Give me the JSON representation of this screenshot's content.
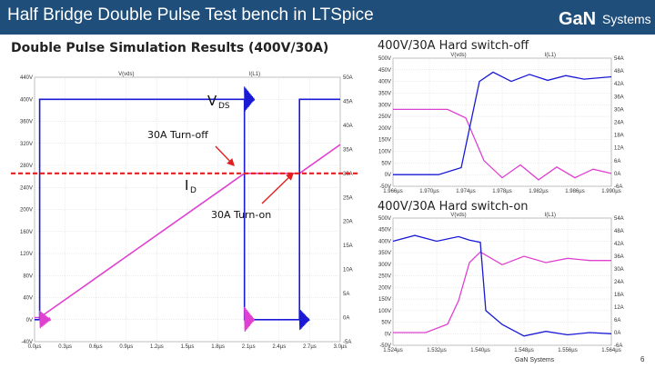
{
  "header": {
    "title": "Half Bridge Double Pulse Test bench in LTSpice",
    "logo_text": "GaN",
    "logo_sub": "Systems"
  },
  "left_title": "Double Pulse Simulation Results (400V/30A)",
  "footer": {
    "company": "GaN Systems",
    "page": "6"
  },
  "colors": {
    "vds": "#1a1ad6",
    "id": "#e040d0",
    "title_bg": "#1f4e7a",
    "dashed": "#e02020"
  },
  "chart_data": [
    {
      "type": "line",
      "title": "Double Pulse Simulation Results (400V/30A)",
      "series_labels": [
        "V(vds)",
        "I(L1)"
      ],
      "x_ticks": [
        "0.0µs",
        "0.3µs",
        "0.6µs",
        "0.9µs",
        "1.2µs",
        "1.5µs",
        "1.8µs",
        "2.1µs",
        "2.4µs",
        "2.7µs",
        "3.0µs"
      ],
      "xlim": [
        0,
        3.0
      ],
      "y_left_ticks": [
        "-40V",
        "0V",
        "40V",
        "80V",
        "120V",
        "160V",
        "200V",
        "240V",
        "280V",
        "320V",
        "360V",
        "400V",
        "440V"
      ],
      "ylim_left": [
        -40,
        440
      ],
      "y_right_ticks": [
        "-5A",
        "0A",
        "5A",
        "10A",
        "15A",
        "20A",
        "25A",
        "30A",
        "35A",
        "40A",
        "45A",
        "50A"
      ],
      "ylim_right": [
        -5,
        50
      ],
      "series": [
        {
          "name": "V(vds)",
          "x": [
            0.0,
            0.05,
            0.05,
            2.06,
            2.06,
            2.1,
            2.4,
            2.6,
            2.6,
            3.0
          ],
          "y": [
            0,
            0,
            400,
            400,
            0,
            0,
            0,
            0,
            400,
            400
          ]
        },
        {
          "name": "I(L1)",
          "x": [
            0.0,
            0.05,
            2.06,
            2.6,
            3.0
          ],
          "y": [
            0,
            0,
            30,
            30,
            36
          ]
        }
      ],
      "annotations": {
        "vds_label": "V",
        "vds_sub": "DS",
        "id_label": "I",
        "id_sub": "D",
        "turn_off": "30A Turn-off",
        "turn_on": "30A Turn-on"
      }
    },
    {
      "type": "line",
      "title": "400V/30A Hard switch-off",
      "series_labels": [
        "V(vds)",
        "I(L1)"
      ],
      "x_ticks": [
        "1.966µs",
        "1.970µs",
        "1.974µs",
        "1.978µs",
        "1.982µs",
        "1.986µs",
        "1.990µs"
      ],
      "xlim": [
        1.966,
        1.99
      ],
      "y_left_ticks": [
        "-50V",
        "0V",
        "50V",
        "100V",
        "150V",
        "200V",
        "250V",
        "300V",
        "350V",
        "400V",
        "450V",
        "500V"
      ],
      "ylim_left": [
        -50,
        500
      ],
      "y_right_ticks": [
        "-6A",
        "0A",
        "6A",
        "12A",
        "18A",
        "24A",
        "30A",
        "36A",
        "42A",
        "48A",
        "54A"
      ],
      "ylim_right": [
        -6,
        54
      ],
      "series": [
        {
          "name": "V(vds)",
          "x": [
            1.966,
            1.971,
            1.9735,
            1.9755,
            1.977,
            1.979,
            1.981,
            1.983,
            1.985,
            1.987,
            1.99
          ],
          "y": [
            0,
            0,
            30,
            400,
            440,
            400,
            430,
            405,
            425,
            410,
            420
          ]
        },
        {
          "name": "I(L1)",
          "x": [
            1.966,
            1.972,
            1.974,
            1.976,
            1.978,
            1.98,
            1.982,
            1.984,
            1.986,
            1.988,
            1.99
          ],
          "y": [
            30,
            30,
            26,
            6,
            -2,
            4,
            -3,
            3,
            -2,
            2,
            0
          ]
        }
      ]
    },
    {
      "type": "line",
      "title": "400V/30A Hard switch-on",
      "series_labels": [
        "V(vds)",
        "I(L1)"
      ],
      "x_ticks": [
        "1.524µs",
        "1.532µs",
        "1.540µs",
        "1.548µs",
        "1.556µs",
        "1.564µs"
      ],
      "xlim": [
        1.524,
        1.564
      ],
      "y_left_ticks": [
        "-50V",
        "0V",
        "50V",
        "100V",
        "150V",
        "200V",
        "250V",
        "300V",
        "350V",
        "400V",
        "450V",
        "500V"
      ],
      "ylim_left": [
        -50,
        500
      ],
      "y_right_ticks": [
        "-6A",
        "0A",
        "6A",
        "12A",
        "18A",
        "24A",
        "30A",
        "36A",
        "42A",
        "48A",
        "54A"
      ],
      "ylim_right": [
        -6,
        54
      ],
      "series": [
        {
          "name": "V(vds)",
          "x": [
            1.524,
            1.528,
            1.532,
            1.536,
            1.538,
            1.54,
            1.541,
            1.544,
            1.548,
            1.552,
            1.556,
            1.56,
            1.564
          ],
          "y": [
            400,
            425,
            400,
            420,
            405,
            395,
            100,
            40,
            -10,
            10,
            -5,
            5,
            0
          ]
        },
        {
          "name": "I(L1)",
          "x": [
            1.524,
            1.53,
            1.534,
            1.536,
            1.538,
            1.54,
            1.544,
            1.548,
            1.552,
            1.556,
            1.56,
            1.564
          ],
          "y": [
            0,
            0,
            4,
            15,
            33,
            38,
            32,
            36,
            33,
            35,
            34,
            34
          ]
        }
      ]
    }
  ]
}
